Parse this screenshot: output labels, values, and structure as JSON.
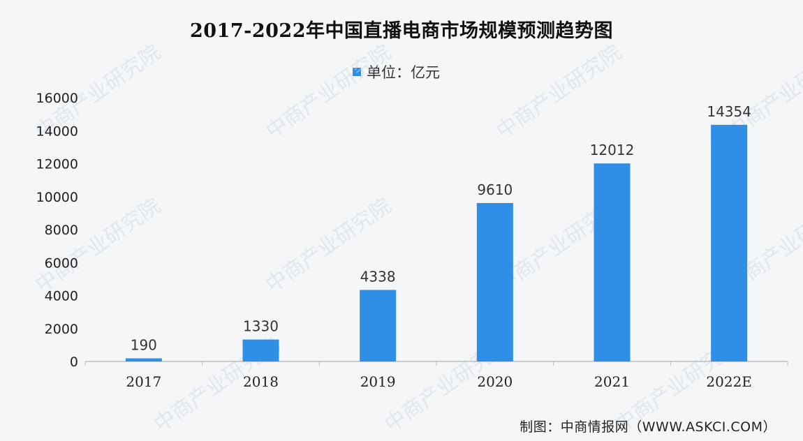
{
  "chart_data": {
    "type": "bar",
    "title": "2017-2022年中国直播电商市场规模预测趋势图",
    "legend": "单位：亿元",
    "categories": [
      "2017",
      "2018",
      "2019",
      "2020",
      "2021",
      "2022E"
    ],
    "series": [
      {
        "name": "单位：亿元",
        "values": [
          190,
          1330,
          4338,
          9610,
          12012,
          14354
        ]
      }
    ],
    "ylim": [
      0,
      16000
    ],
    "yticks": [
      0,
      2000,
      4000,
      6000,
      8000,
      10000,
      12000,
      14000,
      16000
    ],
    "xlabel": "",
    "ylabel": "",
    "grid": false,
    "legend_position": "top-center",
    "color": "#2f8fe6"
  },
  "source": "制图：中商情报网（WWW.ASKCI.COM）",
  "watermark": "中商产业研究院"
}
